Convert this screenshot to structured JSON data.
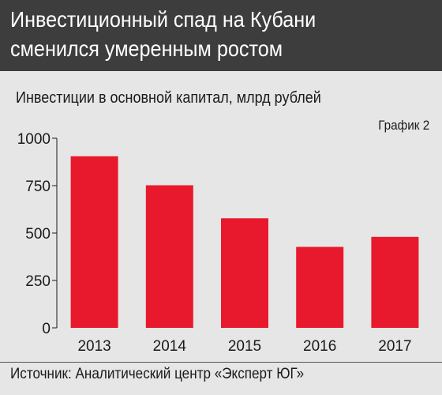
{
  "header": {
    "title": "Инвестиционный спад на Кубани сменился умеренным ростом"
  },
  "subtitle": "Инвестиции в основной капитал, млрд рублей",
  "tag": "График 2",
  "source": "Источник: Аналитический центр «Эксперт ЮГ»",
  "colors": {
    "bar": "#e8192c",
    "header_bg": "#3d3d3d",
    "background": "#e6e6e6"
  },
  "chart_data": {
    "type": "bar",
    "categories": [
      "2013",
      "2014",
      "2015",
      "2016",
      "2017"
    ],
    "values": [
      905,
      752,
      578,
      427,
      480
    ],
    "ylim": [
      0,
      1000
    ],
    "yticks": [
      0,
      250,
      500,
      750,
      1000
    ],
    "title": "Инвестиции в основной капитал, млрд рублей",
    "xlabel": "",
    "ylabel": "",
    "grid": false,
    "legend": "none"
  }
}
